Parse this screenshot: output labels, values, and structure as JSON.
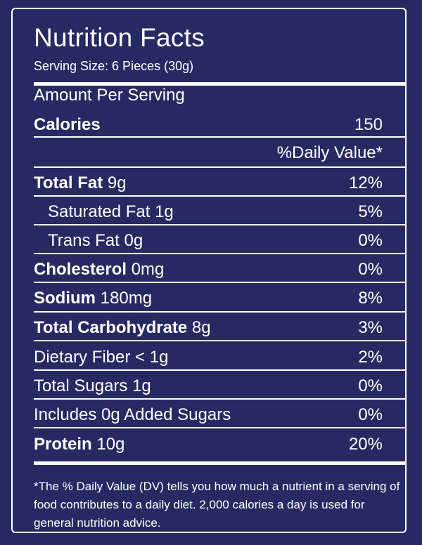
{
  "colors": {
    "background": "#272a62",
    "foreground": "#ffffff"
  },
  "title": "Nutrition Facts",
  "serving_size": "Serving Size: 6 Pieces (30g)",
  "amount_per_serving": "Amount Per Serving",
  "calories": {
    "label": "Calories",
    "value": "150"
  },
  "daily_value_header": "%Daily Value*",
  "nutrients": [
    {
      "name": "Total Fat",
      "amount": " 9g",
      "dv": "12%"
    },
    {
      "name": "Saturated Fat 1g",
      "amount": "",
      "dv": "5%"
    },
    {
      "name": "Trans Fat 0g",
      "amount": "",
      "dv": "0%"
    },
    {
      "name": "Cholesterol",
      "amount": " 0mg",
      "dv": "0%"
    },
    {
      "name": "Sodium",
      "amount": " 180mg",
      "dv": "8%"
    },
    {
      "name": "Total Carbohydrate",
      "amount": " 8g",
      "dv": "3%"
    },
    {
      "name": "Dietary Fiber < 1g",
      "amount": "",
      "dv": "2%"
    },
    {
      "name": "Total Sugars 1g",
      "amount": "",
      "dv": "0%"
    },
    {
      "name": "Includes 0g Added Sugars",
      "amount": "",
      "dv": "0%"
    },
    {
      "name": "Protein",
      "amount": " 10g",
      "dv": "20%"
    }
  ],
  "footnote": "*The % Daily Value (DV) tells you how much a nutrient in a serving of food contributes to a daily diet. 2,000 calories a day is used for general nutrition advice."
}
